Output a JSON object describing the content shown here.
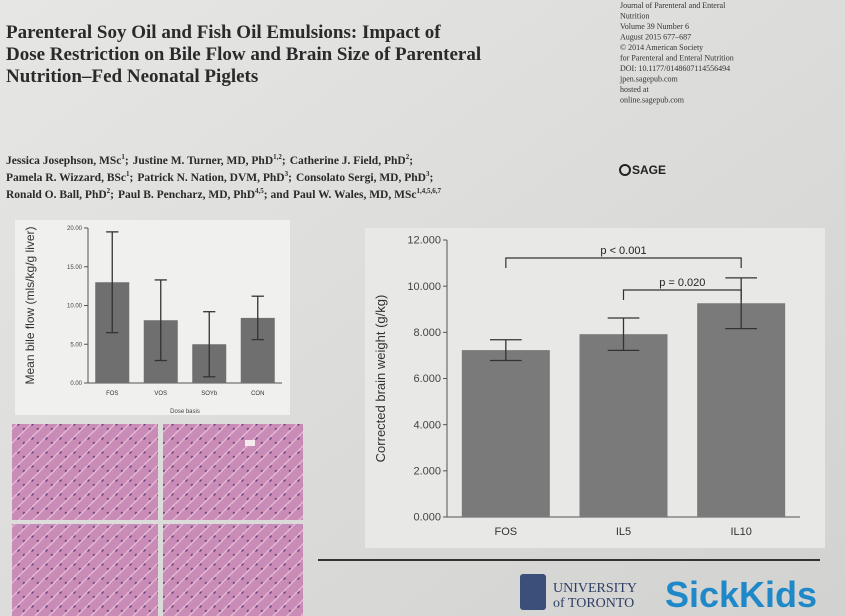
{
  "header": {
    "title_lines": [
      "Parenteral Soy Oil and Fish Oil Emulsions: Impact of",
      "Dose Restriction on Bile Flow and Brain Size of Parenteral",
      "Nutrition–Fed Neonatal Piglets"
    ],
    "journal_lines": [
      "Journal of Parenteral and Enteral",
      "Nutrition",
      "Volume 39 Number 6",
      "August 2015 677–687",
      "© 2014 American Society",
      "for Parenteral and Enteral Nutrition",
      "DOI: 10.1177/0148607114556494",
      "jpen.sagepub.com",
      "hosted at",
      "online.sagepub.com"
    ],
    "publisher": "SAGE"
  },
  "authors": [
    [
      {
        "text": "Jessica Josephson, MSc",
        "sup": "1",
        "after": ";"
      },
      {
        "text": "Justine M. Turner, MD, PhD",
        "sup": "1,2",
        "after": ";"
      },
      {
        "text": "Catherine J. Field, PhD",
        "sup": "2",
        "after": ";"
      }
    ],
    [
      {
        "text": "Pamela R. Wizzard, BSc",
        "sup": "1",
        "after": ";"
      },
      {
        "text": "Patrick N. Nation, DVM, PhD",
        "sup": "3",
        "after": ";"
      },
      {
        "text": "Consolato Sergi, MD, PhD",
        "sup": "3",
        "after": ";"
      }
    ],
    [
      {
        "text": "Ronald O. Ball, PhD",
        "sup": "2",
        "after": ";"
      },
      {
        "text": "Paul B. Pencharz, MD, PhD",
        "sup": "4,5",
        "after": "; and"
      },
      {
        "text": "Paul W. Wales, MD, MSc",
        "sup": "1,4,5,6,7",
        "after": ""
      }
    ]
  ],
  "chart_data": [
    {
      "type": "bar",
      "ylabel": "Mean bile flow (mls/kg/g liver)",
      "xlabel": "Dose basis",
      "categories": [
        "FOS",
        "VOS",
        "SOYb",
        "CON"
      ],
      "values": [
        13,
        8.1,
        5,
        8.4
      ],
      "errors": [
        6.5,
        5.2,
        4.2,
        2.8
      ],
      "color": "#6f6f6f",
      "ylim": [
        0,
        20
      ],
      "yticks": [
        {
          "value": 0,
          "label": "0.00"
        },
        {
          "value": 5,
          "label": "5.00"
        },
        {
          "value": 10,
          "label": "10.00"
        },
        {
          "value": 15,
          "label": "15.00"
        },
        {
          "value": 20,
          "label": "20.00"
        }
      ]
    },
    {
      "type": "bar",
      "ylabel": "Corrected brain weight (g/kg)",
      "categories": [
        "FOS",
        "IL5",
        "IL10"
      ],
      "values": [
        7.23,
        7.92,
        9.26
      ],
      "errors": [
        0.45,
        0.7,
        1.1
      ],
      "color": "#7a7a7a",
      "ylim": [
        0,
        12
      ],
      "yticks": [
        {
          "value": 0,
          "label": "0.000"
        },
        {
          "value": 2,
          "label": "2.000"
        },
        {
          "value": 4,
          "label": "4.000"
        },
        {
          "value": 6,
          "label": "6.000"
        },
        {
          "value": 8,
          "label": "8.000"
        },
        {
          "value": 10,
          "label": "10.000"
        },
        {
          "value": 12,
          "label": "12.000"
        }
      ],
      "annotations": [
        "p < 0.001",
        "p = 0.020"
      ]
    }
  ],
  "footer": {
    "university": [
      "UNIVERSITY",
      "of TORONTO"
    ],
    "hospital": "SickKids"
  }
}
